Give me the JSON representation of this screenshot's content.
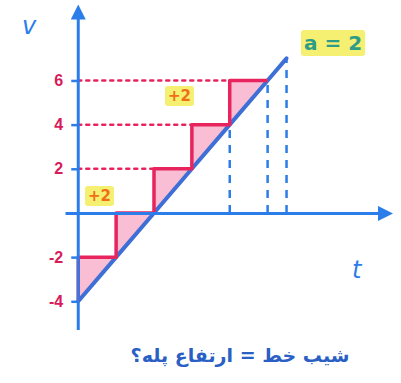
{
  "chart_data": {
    "type": "line",
    "xlabel": "t",
    "ylabel": "v",
    "annotations": [
      "a = 2",
      "+2",
      "+2",
      "شیب خط = ارتفاع پله؟"
    ],
    "x": [
      0,
      1,
      2,
      3,
      4,
      5,
      5.5
    ],
    "series": [
      {
        "type": "line",
        "color": "#3d6fd6",
        "values": [
          -4,
          -2,
          0,
          2,
          4,
          6,
          7
        ]
      },
      {
        "type": "step",
        "color": "#e8245f",
        "values": [
          -4,
          -2,
          0,
          2,
          4,
          6,
          null
        ]
      }
    ],
    "xlim": [
      -0.35,
      8.1
    ],
    "ylim": [
      -5.3,
      9.1
    ],
    "xticks": [],
    "yticks": [
      -4,
      -2,
      2,
      4,
      6
    ],
    "tick_labels": "y",
    "grid": false
  }
}
